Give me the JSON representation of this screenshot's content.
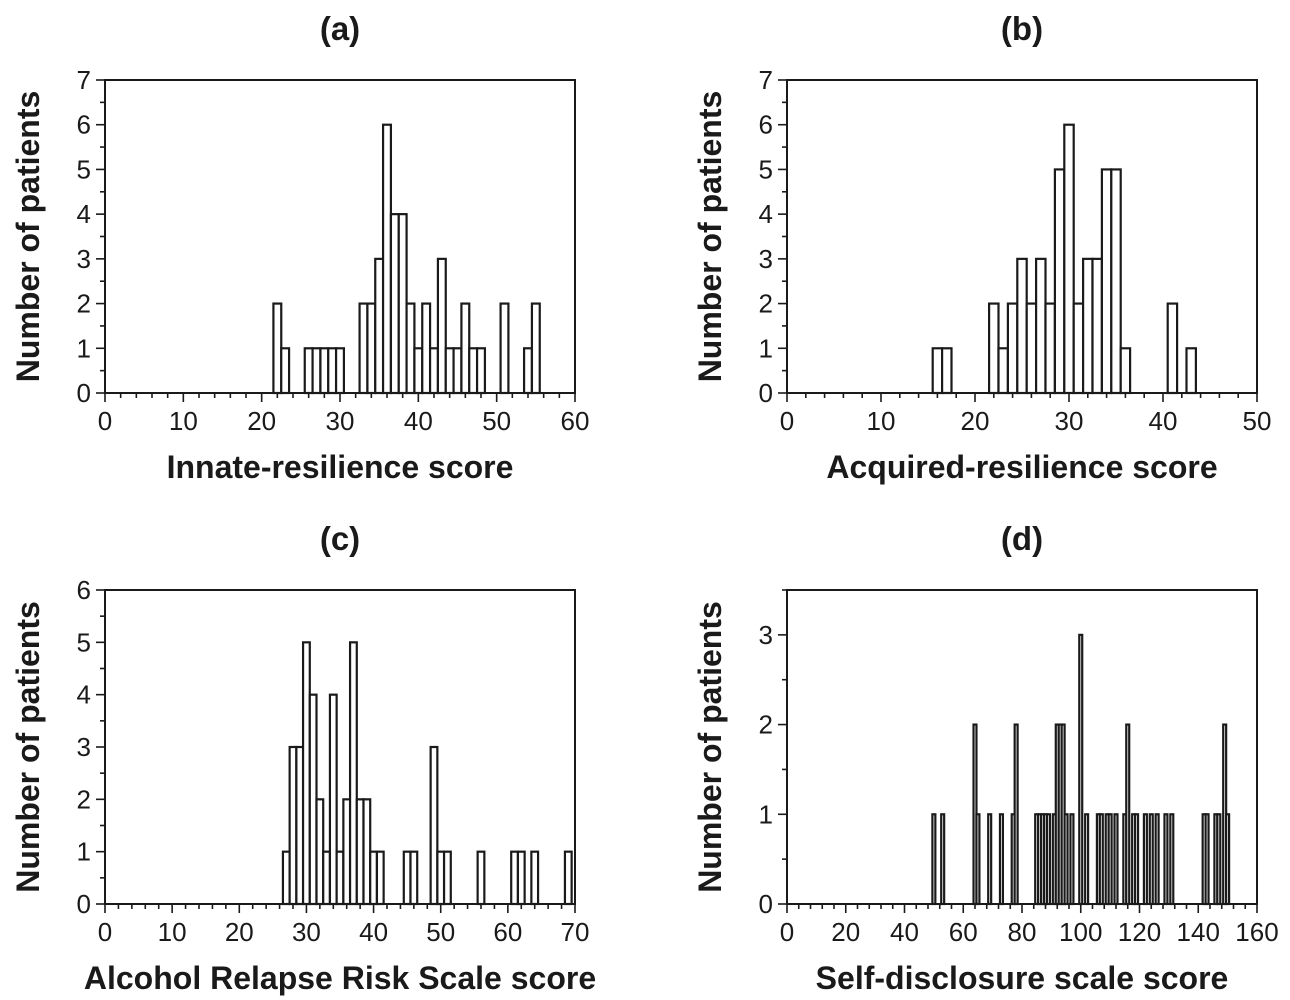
{
  "chart_data": [
    {
      "type": "bar",
      "panel": "(a)",
      "xlabel": "Innate-resilience score",
      "ylabel": "Number of patients",
      "xlim": [
        0,
        60
      ],
      "ylim": [
        0,
        7
      ],
      "xticks": [
        0,
        10,
        20,
        30,
        40,
        50,
        60
      ],
      "yticks": [
        0,
        1,
        2,
        3,
        4,
        5,
        6,
        7
      ],
      "bin_width": 1,
      "x": [
        22,
        23,
        26,
        27,
        28,
        29,
        30,
        33,
        34,
        35,
        36,
        37,
        38,
        39,
        40,
        41,
        42,
        43,
        44,
        45,
        46,
        47,
        48,
        51,
        54,
        55
      ],
      "values": [
        2,
        1,
        1,
        1,
        1,
        1,
        1,
        2,
        2,
        3,
        6,
        4,
        4,
        2,
        1,
        2,
        1,
        3,
        1,
        1,
        2,
        1,
        1,
        2,
        1,
        2
      ]
    },
    {
      "type": "bar",
      "panel": "(b)",
      "xlabel": "Acquired-resilience score",
      "ylabel": "Number of patients",
      "xlim": [
        0,
        50
      ],
      "ylim": [
        0,
        7
      ],
      "xticks": [
        0,
        10,
        20,
        30,
        40,
        50
      ],
      "yticks": [
        0,
        1,
        2,
        3,
        4,
        5,
        6,
        7
      ],
      "bin_width": 1,
      "x": [
        16,
        17,
        22,
        23,
        24,
        25,
        26,
        27,
        28,
        29,
        30,
        31,
        32,
        33,
        34,
        35,
        36,
        41,
        43
      ],
      "values": [
        1,
        1,
        2,
        1,
        2,
        3,
        2,
        3,
        2,
        5,
        6,
        2,
        3,
        3,
        5,
        5,
        1,
        2,
        1
      ]
    },
    {
      "type": "bar",
      "panel": "(c)",
      "xlabel": "Alcohol Relapse Risk Scale score",
      "ylabel": "Number of patients",
      "xlim": [
        0,
        70
      ],
      "ylim": [
        0,
        6
      ],
      "xticks": [
        0,
        10,
        20,
        30,
        40,
        50,
        60,
        70
      ],
      "yticks": [
        0,
        1,
        2,
        3,
        4,
        5,
        6
      ],
      "bin_width": 1,
      "x": [
        27,
        28,
        29,
        30,
        31,
        32,
        33,
        34,
        35,
        36,
        37,
        38,
        39,
        40,
        41,
        45,
        46,
        49,
        50,
        51,
        56,
        61,
        62,
        64,
        69
      ],
      "values": [
        1,
        3,
        3,
        5,
        4,
        2,
        1,
        4,
        1,
        2,
        5,
        2,
        2,
        1,
        1,
        1,
        1,
        3,
        1,
        1,
        1,
        1,
        1,
        1,
        1
      ]
    },
    {
      "type": "bar",
      "panel": "(d)",
      "xlabel": "Self-disclosure scale score",
      "ylabel": "Number of patients",
      "xlim": [
        0,
        160
      ],
      "ylim": [
        0,
        3.5
      ],
      "xticks": [
        0,
        20,
        40,
        60,
        80,
        100,
        120,
        140,
        160
      ],
      "yticks": [
        0,
        1,
        2,
        3
      ],
      "bin_width": 1,
      "x": [
        50,
        53,
        64,
        65,
        69,
        73,
        77,
        78,
        85,
        86,
        87,
        88,
        89,
        91,
        92,
        93,
        94,
        95,
        97,
        100,
        102,
        106,
        107,
        109,
        110,
        112,
        115,
        116,
        118,
        119,
        122,
        124,
        126,
        129,
        131,
        142,
        143,
        146,
        147,
        149,
        150
      ],
      "values": [
        1,
        1,
        2,
        1,
        1,
        1,
        1,
        2,
        1,
        1,
        1,
        1,
        1,
        1,
        2,
        2,
        2,
        1,
        1,
        3,
        1,
        1,
        1,
        1,
        1,
        1,
        1,
        2,
        1,
        1,
        1,
        1,
        1,
        1,
        1,
        1,
        1,
        1,
        1,
        2,
        1
      ]
    }
  ]
}
